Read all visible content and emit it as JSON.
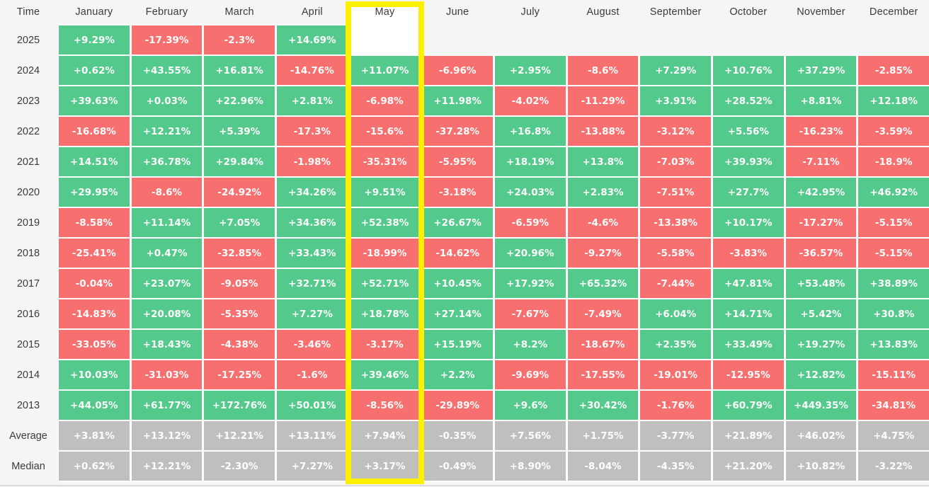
{
  "colors": {
    "positive": "#53c98b",
    "negative": "#f7706f",
    "summary_gray": "#bfbfbf",
    "background": "#f5f5f6",
    "cell_text": "#ffffff",
    "header_text": "#3b3b3b",
    "highlight_yellow": "#fff000",
    "highlight_fill": "#ffffff",
    "bottom_rule": "#dcdcdc"
  },
  "chart_data": {
    "type": "heatmap",
    "title": "Monthly performance table by year",
    "corner_label": "Time",
    "highlighted_column": "May",
    "columns": [
      "January",
      "February",
      "March",
      "April",
      "May",
      "June",
      "July",
      "August",
      "September",
      "October",
      "November",
      "December"
    ],
    "rows": [
      {
        "label": "2025",
        "type": "year",
        "values": [
          "+9.29%",
          "-17.39%",
          "-2.3%",
          "+14.69%",
          null,
          null,
          null,
          null,
          null,
          null,
          null,
          null
        ]
      },
      {
        "label": "2024",
        "type": "year",
        "values": [
          "+0.62%",
          "+43.55%",
          "+16.81%",
          "-14.76%",
          "+11.07%",
          "-6.96%",
          "+2.95%",
          "-8.6%",
          "+7.29%",
          "+10.76%",
          "+37.29%",
          "-2.85%"
        ]
      },
      {
        "label": "2023",
        "type": "year",
        "values": [
          "+39.63%",
          "+0.03%",
          "+22.96%",
          "+2.81%",
          "-6.98%",
          "+11.98%",
          "-4.02%",
          "-11.29%",
          "+3.91%",
          "+28.52%",
          "+8.81%",
          "+12.18%"
        ]
      },
      {
        "label": "2022",
        "type": "year",
        "values": [
          "-16.68%",
          "+12.21%",
          "+5.39%",
          "-17.3%",
          "-15.6%",
          "-37.28%",
          "+16.8%",
          "-13.88%",
          "-3.12%",
          "+5.56%",
          "-16.23%",
          "-3.59%"
        ]
      },
      {
        "label": "2021",
        "type": "year",
        "values": [
          "+14.51%",
          "+36.78%",
          "+29.84%",
          "-1.98%",
          "-35.31%",
          "-5.95%",
          "+18.19%",
          "+13.8%",
          "-7.03%",
          "+39.93%",
          "-7.11%",
          "-18.9%"
        ]
      },
      {
        "label": "2020",
        "type": "year",
        "values": [
          "+29.95%",
          "-8.6%",
          "-24.92%",
          "+34.26%",
          "+9.51%",
          "-3.18%",
          "+24.03%",
          "+2.83%",
          "-7.51%",
          "+27.7%",
          "+42.95%",
          "+46.92%"
        ]
      },
      {
        "label": "2019",
        "type": "year",
        "values": [
          "-8.58%",
          "+11.14%",
          "+7.05%",
          "+34.36%",
          "+52.38%",
          "+26.67%",
          "-6.59%",
          "-4.6%",
          "-13.38%",
          "+10.17%",
          "-17.27%",
          "-5.15%"
        ]
      },
      {
        "label": "2018",
        "type": "year",
        "values": [
          "-25.41%",
          "+0.47%",
          "-32.85%",
          "+33.43%",
          "-18.99%",
          "-14.62%",
          "+20.96%",
          "-9.27%",
          "-5.58%",
          "-3.83%",
          "-36.57%",
          "-5.15%"
        ]
      },
      {
        "label": "2017",
        "type": "year",
        "values": [
          "-0.04%",
          "+23.07%",
          "-9.05%",
          "+32.71%",
          "+52.71%",
          "+10.45%",
          "+17.92%",
          "+65.32%",
          "-7.44%",
          "+47.81%",
          "+53.48%",
          "+38.89%"
        ]
      },
      {
        "label": "2016",
        "type": "year",
        "values": [
          "-14.83%",
          "+20.08%",
          "-5.35%",
          "+7.27%",
          "+18.78%",
          "+27.14%",
          "-7.67%",
          "-7.49%",
          "+6.04%",
          "+14.71%",
          "+5.42%",
          "+30.8%"
        ]
      },
      {
        "label": "2015",
        "type": "year",
        "values": [
          "-33.05%",
          "+18.43%",
          "-4.38%",
          "-3.46%",
          "-3.17%",
          "+15.19%",
          "+8.2%",
          "-18.67%",
          "+2.35%",
          "+33.49%",
          "+19.27%",
          "+13.83%"
        ]
      },
      {
        "label": "2014",
        "type": "year",
        "values": [
          "+10.03%",
          "-31.03%",
          "-17.25%",
          "-1.6%",
          "+39.46%",
          "+2.2%",
          "-9.69%",
          "-17.55%",
          "-19.01%",
          "-12.95%",
          "+12.82%",
          "-15.11%"
        ]
      },
      {
        "label": "2013",
        "type": "year",
        "values": [
          "+44.05%",
          "+61.77%",
          "+172.76%",
          "+50.01%",
          "-8.56%",
          "-29.89%",
          "+9.6%",
          "+30.42%",
          "-1.76%",
          "+60.79%",
          "+449.35%",
          "-34.81%"
        ]
      },
      {
        "label": "Average",
        "type": "summary",
        "values": [
          "+3.81%",
          "+13.12%",
          "+12.21%",
          "+13.11%",
          "+7.94%",
          "-0.35%",
          "+7.56%",
          "+1.75%",
          "-3.77%",
          "+21.89%",
          "+46.02%",
          "+4.75%"
        ]
      },
      {
        "label": "Median",
        "type": "summary",
        "values": [
          "+0.62%",
          "+12.21%",
          "-2.30%",
          "+7.27%",
          "+3.17%",
          "-0.49%",
          "+8.90%",
          "-8.04%",
          "-4.35%",
          "+21.20%",
          "+10.82%",
          "-3.22%"
        ]
      }
    ]
  }
}
